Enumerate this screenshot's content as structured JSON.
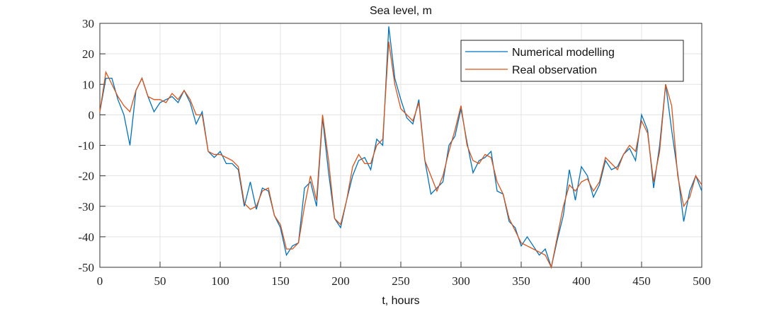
{
  "chart_data": {
    "type": "line",
    "title": "Sea level, m",
    "xlabel": "t, hours",
    "x": [
      0,
      5,
      10,
      15,
      20,
      25,
      30,
      35,
      40,
      45,
      50,
      55,
      60,
      65,
      70,
      75,
      80,
      85,
      90,
      95,
      100,
      105,
      110,
      115,
      120,
      125,
      130,
      135,
      140,
      145,
      150,
      155,
      160,
      165,
      170,
      175,
      180,
      185,
      190,
      195,
      200,
      205,
      210,
      215,
      220,
      225,
      230,
      235,
      240,
      245,
      250,
      255,
      260,
      265,
      270,
      275,
      280,
      285,
      290,
      295,
      300,
      305,
      310,
      315,
      320,
      325,
      330,
      335,
      340,
      345,
      350,
      355,
      360,
      365,
      370,
      375,
      380,
      385,
      390,
      395,
      400,
      405,
      410,
      415,
      420,
      425,
      430,
      435,
      440,
      445,
      450,
      455,
      460,
      465,
      470,
      475,
      480,
      485,
      490,
      495,
      500
    ],
    "series": [
      {
        "name": "Numerical modelling",
        "color": "#0072bd",
        "values": [
          1,
          12,
          12,
          5,
          0,
          -10,
          8,
          12,
          6,
          1,
          4,
          5,
          6,
          4,
          8,
          4,
          -3,
          1,
          -12,
          -14,
          -12,
          -16,
          -16,
          -18,
          -30,
          -22,
          -31,
          -24,
          -25,
          -33,
          -37,
          -46,
          -43,
          -42,
          -24,
          -22,
          -30,
          -1,
          -19,
          -34,
          -37,
          -28,
          -20,
          -15,
          -14,
          -18,
          -8,
          -10,
          29,
          12,
          5,
          -1,
          -3,
          5,
          -15,
          -26,
          -24,
          -22,
          -10,
          -7,
          2,
          -9,
          -19,
          -15,
          -14,
          -12,
          -25,
          -26,
          -35,
          -37,
          -43,
          -40,
          -43,
          -46,
          -44,
          -50,
          -41,
          -33,
          -18,
          -28,
          -17,
          -20,
          -27,
          -23,
          -15,
          -18,
          -17,
          -13,
          -11,
          -15,
          0,
          -5,
          -24,
          -10,
          10,
          -5,
          -19,
          -35,
          -25,
          -20,
          -25
        ]
      },
      {
        "name": "Real observation",
        "color": "#d95319",
        "values": [
          1,
          14,
          10,
          6,
          3,
          1,
          8,
          12,
          6,
          5,
          5,
          4,
          7,
          5,
          8,
          5,
          0,
          0,
          -12,
          -13,
          -13,
          -14,
          -15,
          -17,
          -29,
          -31,
          -30,
          -25,
          -24,
          -33,
          -36,
          -44,
          -44,
          -42,
          -30,
          -20,
          -28,
          0,
          -15,
          -34,
          -36,
          -28,
          -17,
          -13,
          -16,
          -16,
          -10,
          -8,
          24,
          10,
          2,
          0,
          -2,
          4,
          -15,
          -20,
          -25,
          -20,
          -12,
          -5,
          3,
          -10,
          -15,
          -16,
          -13,
          -14,
          -22,
          -26,
          -34,
          -38,
          -42,
          -43,
          -44,
          -45,
          -46,
          -50,
          -40,
          -30,
          -23,
          -25,
          -22,
          -21,
          -25,
          -22,
          -14,
          -16,
          -18,
          -13,
          -10,
          -12,
          -2,
          -6,
          -22,
          -12,
          10,
          3,
          -20,
          -30,
          -27,
          -20,
          -23
        ]
      }
    ],
    "xlim": [
      0,
      500
    ],
    "xticks": [
      0,
      50,
      100,
      150,
      200,
      250,
      300,
      350,
      400,
      450,
      500
    ],
    "ylim": [
      -50,
      30
    ],
    "yticks": [
      -50,
      -40,
      -30,
      -20,
      -10,
      0,
      10,
      20,
      30
    ],
    "grid": true,
    "legend": "northeast"
  }
}
